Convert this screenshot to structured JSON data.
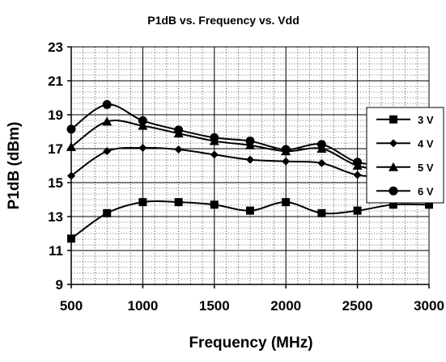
{
  "chart_data": {
    "type": "line",
    "title": "P1dB vs. Frequency vs. Vdd",
    "xlabel": "Frequency (MHz)",
    "ylabel": "P1dB (dBm)",
    "xlim": [
      500,
      3000
    ],
    "ylim": [
      9,
      23
    ],
    "xticks": [
      500,
      1000,
      1500,
      2000,
      2500,
      3000
    ],
    "yticks": [
      9,
      11,
      13,
      15,
      17,
      19,
      21,
      23
    ],
    "grid": true,
    "legend_position": "right",
    "x": [
      500,
      750,
      1000,
      1250,
      1500,
      1750,
      2000,
      2250,
      2500,
      2750,
      3000
    ],
    "series": [
      {
        "name": "3 V",
        "marker": "square",
        "color": "#000000",
        "values": [
          11.7,
          13.2,
          13.85,
          13.85,
          13.7,
          13.35,
          13.85,
          13.2,
          13.35,
          13.7,
          13.7
        ]
      },
      {
        "name": "4 V",
        "marker": "diamond",
        "color": "#000000",
        "values": [
          15.4,
          16.85,
          17.05,
          16.95,
          16.65,
          16.35,
          16.25,
          16.15,
          15.45,
          15.4,
          15.4
        ]
      },
      {
        "name": "5 V",
        "marker": "triangle",
        "color": "#000000",
        "values": [
          17.1,
          18.6,
          18.35,
          17.9,
          17.45,
          17.2,
          16.85,
          17.0,
          16.0,
          15.7,
          15.6
        ]
      },
      {
        "name": "6 V",
        "marker": "circle",
        "color": "#000000",
        "values": [
          18.15,
          19.6,
          18.65,
          18.1,
          17.65,
          17.45,
          16.95,
          17.25,
          16.2,
          16.1,
          16.0
        ]
      }
    ]
  }
}
